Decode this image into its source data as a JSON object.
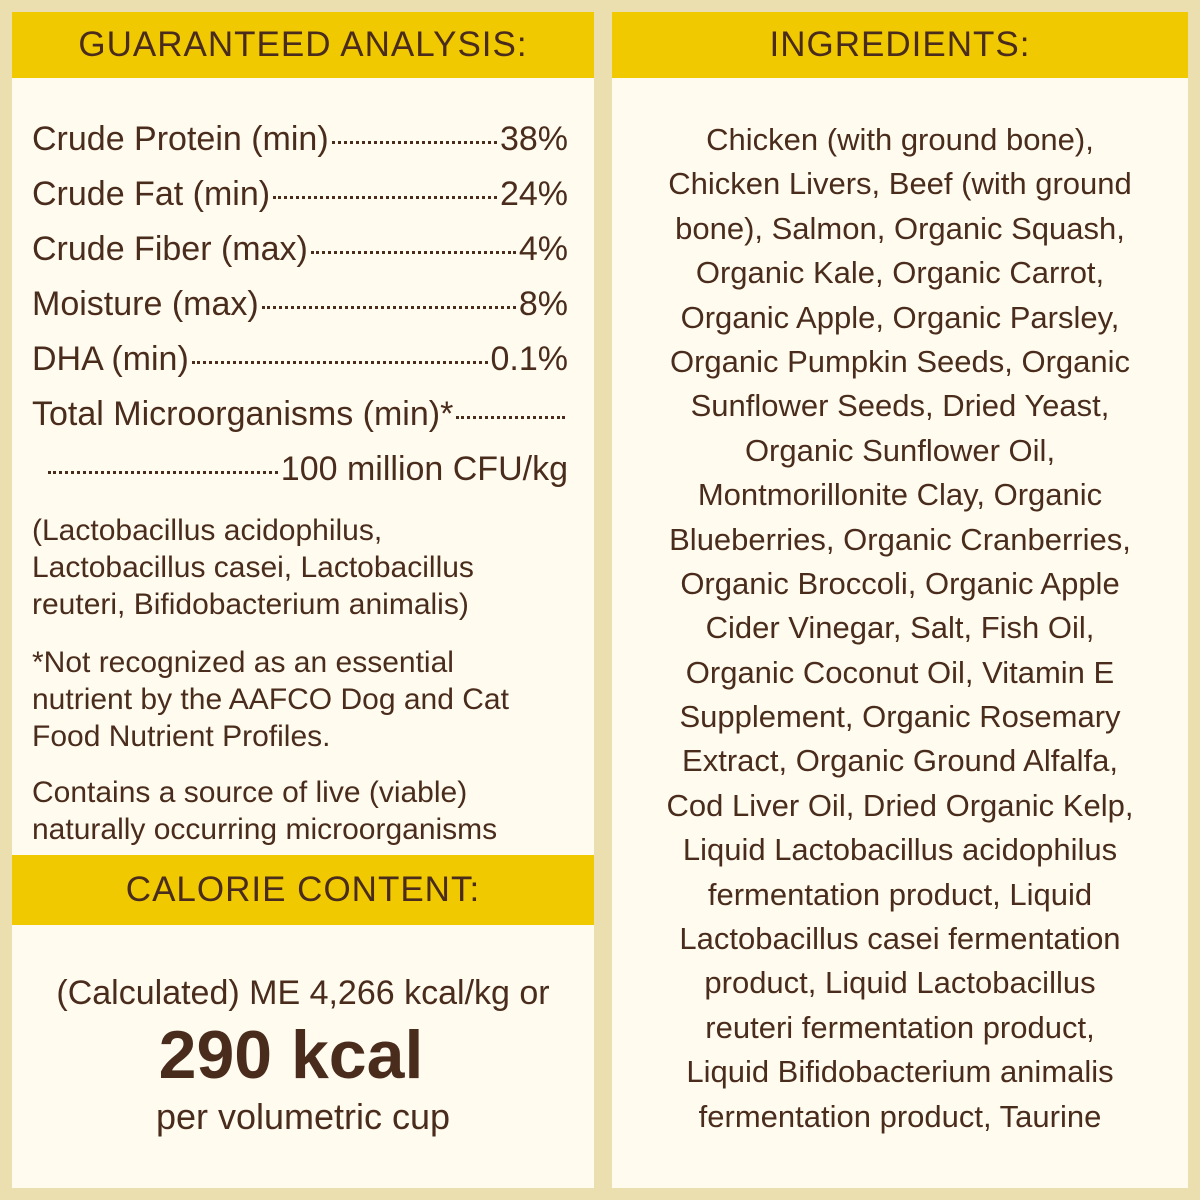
{
  "analysis": {
    "title": "GUARANTEED ANALYSIS:",
    "rows": [
      {
        "label": "Crude Protein (min)",
        "value": "38%"
      },
      {
        "label": "Crude Fat (min)",
        "value": "24%"
      },
      {
        "label": "Crude Fiber (max)",
        "value": "4%"
      },
      {
        "label": "Moisture (max)",
        "value": "8%"
      },
      {
        "label": "DHA (min)",
        "value": "0.1%"
      },
      {
        "label": "Total Microorganisms (min)*",
        "value": "100 million CFU/kg"
      }
    ],
    "strains": [
      "(Lactobacillus acidophilus,",
      "Lactobacillus casei, Lactobacillus",
      "reuteri, Bifidobacterium animalis)"
    ],
    "note": [
      "*Not recognized as an essential",
      "nutrient by the AAFCO Dog and Cat",
      "Food Nutrient Profiles."
    ],
    "statement": [
      "Contains a source of live (viable)",
      "naturally occurring microorganisms"
    ]
  },
  "calories": {
    "title": "CALORIE CONTENT:",
    "line1": "(Calculated) ME 4,266 kcal/kg or",
    "big": "290 kcal",
    "line3": "per volumetric cup"
  },
  "ingredients": {
    "title": "INGREDIENTS:",
    "lines": [
      "Chicken (with ground bone),",
      "Chicken Livers, Beef (with ground",
      "bone), Salmon, Organic Squash,",
      "Organic Kale, Organic Carrot,",
      "Organic Apple, Organic Parsley,",
      "Organic Pumpkin Seeds, Organic",
      "Sunflower Seeds, Dried Yeast,",
      "Organic Sunflower Oil,",
      "Montmorillonite Clay, Organic",
      "Blueberries, Organic Cranberries,",
      "Organic Broccoli, Organic Apple",
      "Cider Vinegar, Salt, Fish Oil,",
      "Organic Coconut Oil, Vitamin E",
      "Supplement, Organic Rosemary",
      "Extract, Organic Ground Alfalfa,",
      "Cod Liver Oil, Dried Organic Kelp,",
      "Liquid Lactobacillus acidophilus",
      "fermentation product, Liquid",
      "Lactobacillus casei fermentation",
      "product, Liquid Lactobacillus",
      "reuteri fermentation product,",
      "Liquid Bifidobacterium animalis",
      "fermentation product, Taurine"
    ]
  }
}
